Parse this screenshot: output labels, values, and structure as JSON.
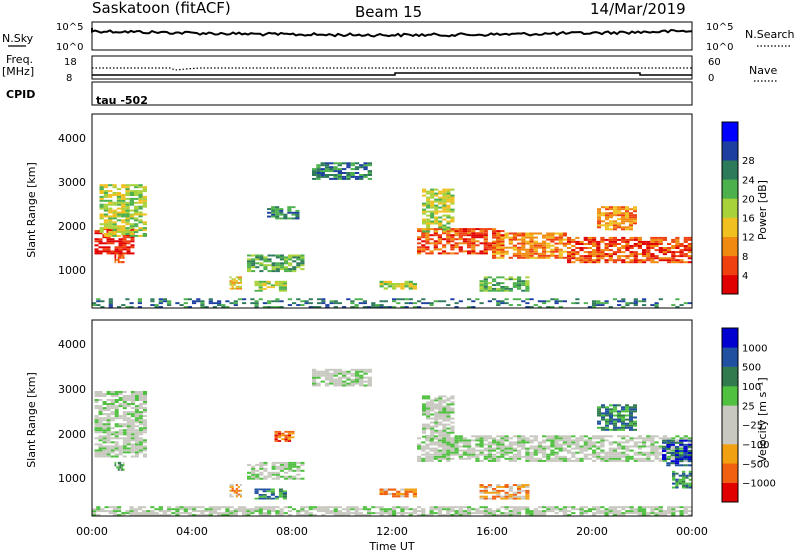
{
  "header": {
    "station": "Saskatoon (fitACF)",
    "beam": "Beam 15",
    "date": "14/Mar/2019"
  },
  "aux": {
    "nsky_label": "N.Sky",
    "nsky_ticks": [
      "10^5",
      "10^0"
    ],
    "nsearch_label": "N.Search",
    "nsearch_ticks": [
      "10^5",
      "10^0"
    ],
    "freq_label": "Freq.",
    "freq_unit": "[MHz]",
    "freq_ticks": [
      "18",
      "8"
    ],
    "nave_label": "Nave",
    "nave_ticks": [
      "60",
      "0"
    ],
    "cpid_label": "CPID",
    "cpid_text": "tau -502"
  },
  "colors": {
    "power_scale": [
      "#0000ff",
      "#1d3f9f",
      "#2d7a5a",
      "#4cb04c",
      "#a8d23a",
      "#f0c020",
      "#f08a10",
      "#f04010",
      "#e00000"
    ],
    "velocity_scale": [
      "#0000d0",
      "#2050a0",
      "#307a4e",
      "#50c040",
      "#c8c8c0",
      "#c8c8c0",
      "#f0a010",
      "#f06010",
      "#e00000"
    ]
  },
  "chart_data": [
    {
      "type": "heatmap",
      "name": "power",
      "xlabel": "",
      "ylabel": "Slant Range [km]",
      "xlim": [
        0,
        24
      ],
      "ylim": [
        180,
        4600
      ],
      "yticks": [
        "1000",
        "2000",
        "3000",
        "4000"
      ],
      "colorbar_label": "Power [dB]",
      "colorbar_ticks": [
        "4",
        "8",
        "12",
        "16",
        "20",
        "24",
        "28"
      ],
      "regions": [
        {
          "t0": 0.1,
          "t1": 1.7,
          "r0": 1400,
          "r1": 2000,
          "level": 8
        },
        {
          "t0": 0.3,
          "t1": 2.2,
          "r0": 1800,
          "r1": 3000,
          "level": 4
        },
        {
          "t0": 0.9,
          "t1": 1.3,
          "r0": 1200,
          "r1": 1400,
          "level": 7
        },
        {
          "t0": 5.5,
          "t1": 6.0,
          "r0": 600,
          "r1": 900,
          "level": 5
        },
        {
          "t0": 6.2,
          "t1": 8.5,
          "r0": 1000,
          "r1": 1400,
          "level": 3
        },
        {
          "t0": 6.5,
          "t1": 7.8,
          "r0": 550,
          "r1": 800,
          "level": 4
        },
        {
          "t0": 7.0,
          "t1": 8.3,
          "r0": 2200,
          "r1": 2500,
          "level": 2
        },
        {
          "t0": 8.8,
          "t1": 11.2,
          "r0": 3100,
          "r1": 3500,
          "level": 2
        },
        {
          "t0": 11.5,
          "t1": 13.0,
          "r0": 600,
          "r1": 800,
          "level": 4
        },
        {
          "t0": 13.0,
          "t1": 16.5,
          "r0": 1400,
          "r1": 2000,
          "level": 7
        },
        {
          "t0": 13.2,
          "t1": 14.5,
          "r0": 1900,
          "r1": 2900,
          "level": 4
        },
        {
          "t0": 15.5,
          "t1": 17.5,
          "r0": 550,
          "r1": 900,
          "level": 3
        },
        {
          "t0": 16.0,
          "t1": 19.0,
          "r0": 1300,
          "r1": 1900,
          "level": 6
        },
        {
          "t0": 19.0,
          "t1": 24.0,
          "r0": 1200,
          "r1": 1800,
          "level": 7
        },
        {
          "t0": 20.2,
          "t1": 21.8,
          "r0": 1950,
          "r1": 2500,
          "level": 6
        },
        {
          "t0": 0.0,
          "t1": 24.0,
          "r0": 180,
          "r1": 400,
          "level": 2
        }
      ]
    },
    {
      "type": "heatmap",
      "name": "velocity",
      "xlabel": "Time UT",
      "ylabel": "Slant Range [km]",
      "xlim": [
        0,
        24
      ],
      "ylim": [
        180,
        4600
      ],
      "yticks": [
        "1000",
        "2000",
        "3000",
        "4000"
      ],
      "xticks": [
        "00:00",
        "04:00",
        "08:00",
        "12:00",
        "16:00",
        "20:00",
        "00:00"
      ],
      "colorbar_label": "Velocity [m s⁻¹]",
      "colorbar_ticks": [
        "1000",
        "500",
        "100",
        "25",
        "−25",
        "−100",
        "−500",
        "−1000"
      ],
      "regions": [
        {
          "t0": 0.1,
          "t1": 2.2,
          "r0": 1500,
          "r1": 3000,
          "level": 4
        },
        {
          "t0": 0.9,
          "t1": 1.3,
          "r0": 1200,
          "r1": 1400,
          "level": 3
        },
        {
          "t0": 5.5,
          "t1": 6.0,
          "r0": 600,
          "r1": 900,
          "level": 6
        },
        {
          "t0": 6.2,
          "t1": 8.5,
          "r0": 1000,
          "r1": 1400,
          "level": 4
        },
        {
          "t0": 6.5,
          "t1": 7.8,
          "r0": 550,
          "r1": 800,
          "level": 2
        },
        {
          "t0": 7.3,
          "t1": 8.1,
          "r0": 1850,
          "r1": 2100,
          "level": 7
        },
        {
          "t0": 8.8,
          "t1": 11.2,
          "r0": 3100,
          "r1": 3500,
          "level": 4
        },
        {
          "t0": 11.5,
          "t1": 13.0,
          "r0": 600,
          "r1": 800,
          "level": 6
        },
        {
          "t0": 13.0,
          "t1": 24.0,
          "r0": 1400,
          "r1": 2000,
          "level": 4
        },
        {
          "t0": 13.2,
          "t1": 14.5,
          "r0": 1900,
          "r1": 2900,
          "level": 4
        },
        {
          "t0": 15.5,
          "t1": 17.5,
          "r0": 550,
          "r1": 900,
          "level": 6
        },
        {
          "t0": 20.2,
          "t1": 21.8,
          "r0": 2100,
          "r1": 2700,
          "level": 2
        },
        {
          "t0": 22.8,
          "t1": 24.0,
          "r0": 1300,
          "r1": 1900,
          "level": 1
        },
        {
          "t0": 23.2,
          "t1": 24.0,
          "r0": 800,
          "r1": 1200,
          "level": 2
        },
        {
          "t0": 0.0,
          "t1": 24.0,
          "r0": 180,
          "r1": 400,
          "level": 4
        }
      ]
    }
  ]
}
